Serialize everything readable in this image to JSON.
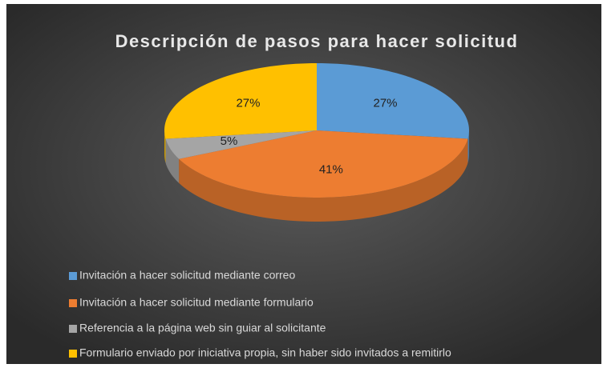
{
  "chart_data": {
    "type": "pie",
    "title": "Descripción de pasos para hacer solicitud",
    "categories": [
      "Invitación a hacer solicitud mediante correo",
      "Invitación a hacer solicitud mediante formulario",
      "Referencia a la página web sin guiar al solicitante",
      "Formulario enviado por iniciativa propia, sin haber sido invitados a remitirlo"
    ],
    "values": [
      27,
      41,
      5,
      27
    ],
    "value_labels": [
      "27%",
      "41%",
      "5%",
      "27%"
    ],
    "colors": [
      "#5b9bd5",
      "#ed7d31",
      "#a5a5a5",
      "#ffc000"
    ],
    "legend": "bottom-left"
  }
}
